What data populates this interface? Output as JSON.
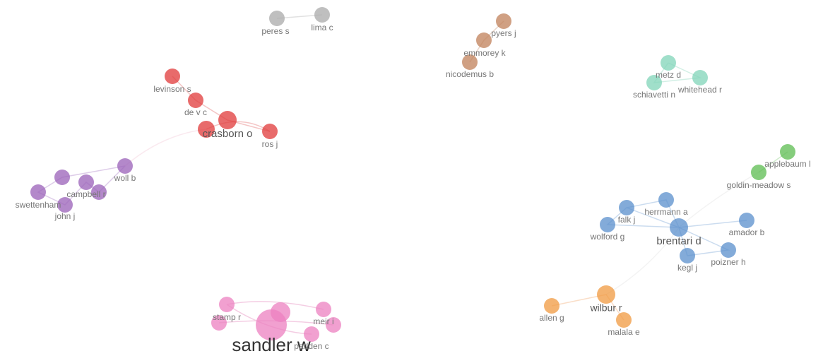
{
  "nodes": [
    {
      "label": "peres s"
    },
    {
      "label": "lima c"
    },
    {
      "label": "pyers j"
    },
    {
      "label": "emmorey k"
    },
    {
      "label": "nicodemus b"
    },
    {
      "label": "metz d"
    },
    {
      "label": "whitehead r"
    },
    {
      "label": "schiavetti n"
    },
    {
      "label": "levinson s"
    },
    {
      "label": "de v c"
    },
    {
      "label": "crasborn o"
    },
    {
      "label": "ros j"
    },
    {
      "label": "woll b"
    },
    {
      "label": "campbell r"
    },
    {
      "label": "swettenham"
    },
    {
      "label": "john j"
    },
    {
      "label": "applebaum l"
    },
    {
      "label": "goldin-meadow s"
    },
    {
      "label": "herrmann a"
    },
    {
      "label": "falk j"
    },
    {
      "label": "wolford g"
    },
    {
      "label": "brentari d"
    },
    {
      "label": "amador b"
    },
    {
      "label": "kegl j"
    },
    {
      "label": "poizner h"
    },
    {
      "label": "allen g"
    },
    {
      "label": "wilbur r"
    },
    {
      "label": "malala e"
    },
    {
      "label": "stamp r"
    },
    {
      "label": "sandler w"
    },
    {
      "label": "meir i"
    },
    {
      "label": "padden c"
    }
  ]
}
